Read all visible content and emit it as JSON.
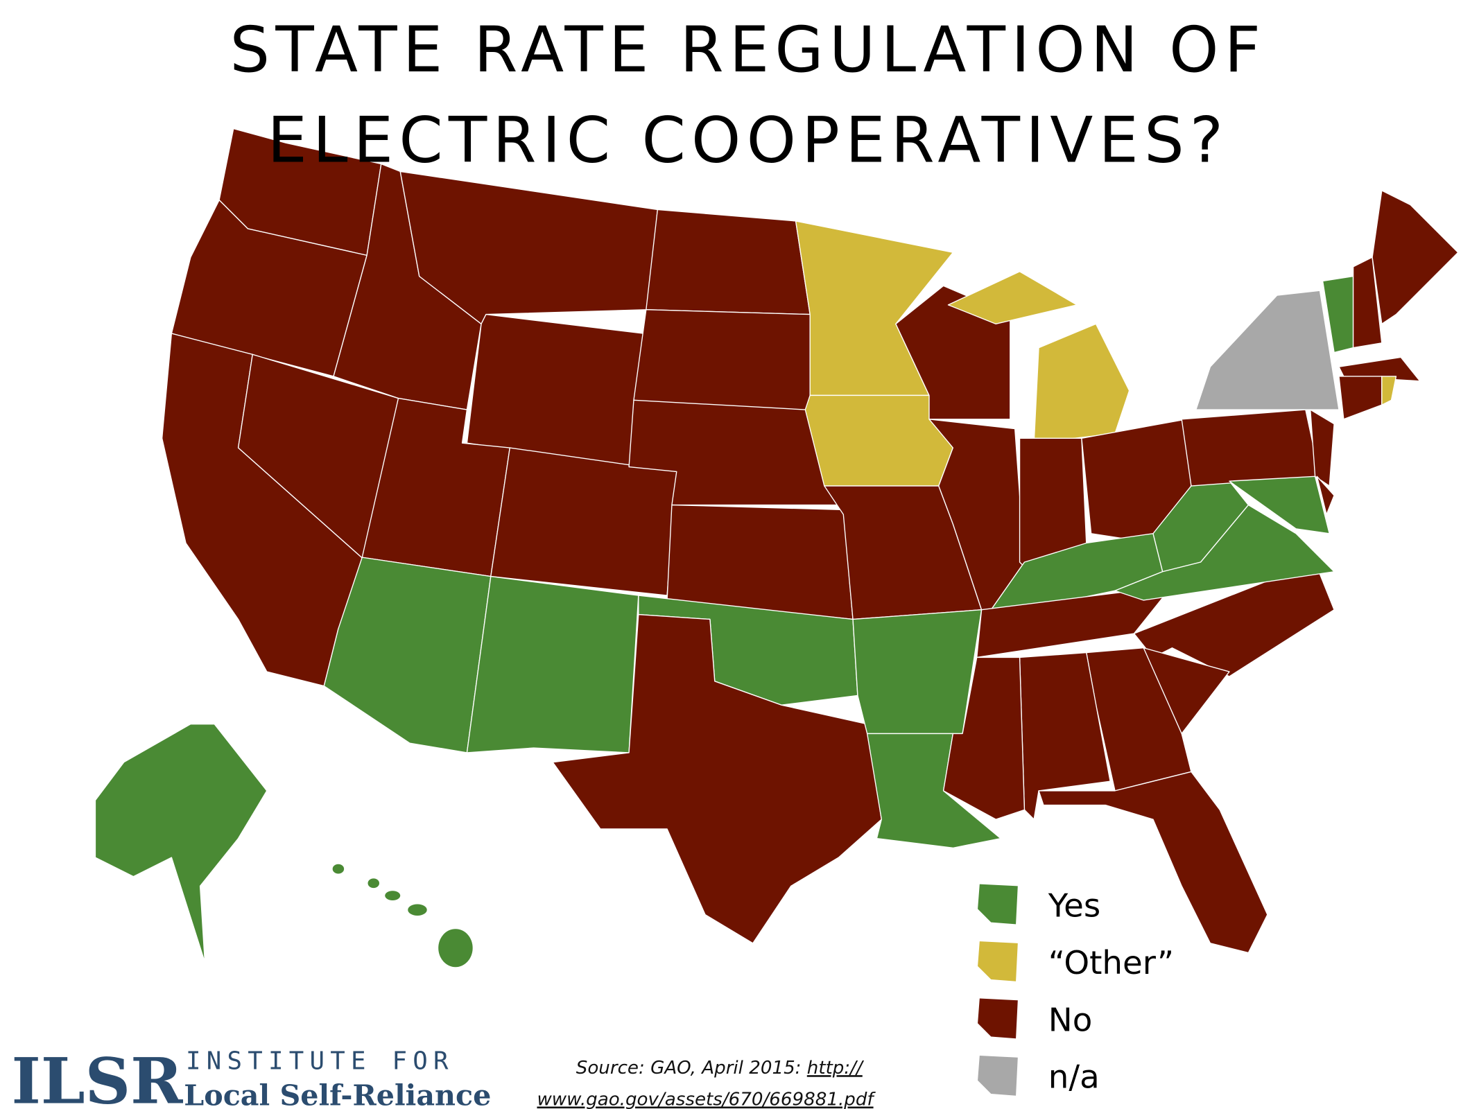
{
  "title": {
    "lines": [
      "STATE RATE REGULATION OF",
      "ELECTRIC COOPERATIVES?"
    ]
  },
  "legend": {
    "items": [
      {
        "label": "Yes",
        "color": "#4a8a34"
      },
      {
        "label": "“Other”",
        "color": "#d2b93a"
      },
      {
        "label": "No",
        "color": "#6e1300"
      },
      {
        "label": "n/a",
        "color": "#a8a8a8"
      }
    ]
  },
  "source": {
    "prefix": "Source: GAO, April 2015: ",
    "url_lines": [
      "http://",
      "www.gao.gov/assets/670/669881.pdf"
    ]
  },
  "logo": {
    "mark": "ILSR",
    "line1": "INSTITUTE FOR",
    "line2": "Local Self-Reliance"
  }
}
